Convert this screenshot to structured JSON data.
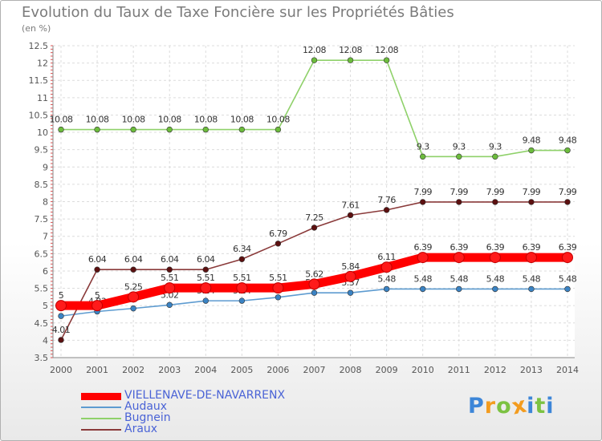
{
  "title": "Evolution du Taux de Taxe Foncière sur les Propriétés Bâties",
  "unit_label": "(en %)",
  "logo": {
    "text": "Proxiti",
    "letters": [
      "P",
      "r",
      "o",
      "x",
      "i",
      "t",
      "i"
    ],
    "colors": [
      "#3d86d8",
      "#f39c1f",
      "#7cc242",
      "#f39c1f",
      "#3d86d8",
      "#7cc242",
      "#3d86d8"
    ]
  },
  "chart_data": {
    "type": "line",
    "title": "Evolution du Taux de Taxe Foncière sur les Propriétés Bâties",
    "ylabel": "(en %)",
    "xlabel": "",
    "ylim": [
      3.5,
      12.5
    ],
    "grid": true,
    "y_ticks": [
      "3.5",
      "4",
      "4.5",
      "5",
      "5.5",
      "6",
      "6.5",
      "7",
      "7.5",
      "8",
      "8.5",
      "9",
      "9.5",
      "10",
      "10.5",
      "11",
      "11.5",
      "12",
      "12.5"
    ],
    "x": [
      "2000",
      "2001",
      "2002",
      "2003",
      "2004",
      "2005",
      "2006",
      "2007",
      "2008",
      "2009",
      "2010",
      "2011",
      "2012",
      "2013",
      "2014"
    ],
    "series": [
      {
        "name": "Audaux",
        "color": "#5d9bd0",
        "marker": "#3a83c4",
        "values": [
          4.7,
          4.83,
          4.92,
          5.02,
          5.14,
          5.14,
          5.24,
          5.37,
          5.37,
          5.48,
          5.48,
          5.48,
          5.48,
          5.48,
          5.48
        ],
        "labels": [
          "",
          "4.83",
          "",
          "5.02",
          "5.14",
          "5.14",
          "5.24",
          "5.37",
          "5.37",
          "5.48",
          "5.48",
          "5.48",
          "5.48",
          "5.48",
          "5.48"
        ]
      },
      {
        "name": "Bugnein",
        "color": "#8fd16a",
        "marker": "#6cbc3c",
        "values": [
          10.08,
          10.08,
          10.08,
          10.08,
          10.08,
          10.08,
          10.08,
          12.08,
          12.08,
          12.08,
          9.3,
          9.3,
          9.3,
          9.48,
          9.48
        ],
        "labels": [
          "10.08",
          "10.08",
          "10.08",
          "10.08",
          "10.08",
          "10.08",
          "10.08",
          "12.08",
          "12.08",
          "12.08",
          "9.3",
          "9.3",
          "9.3",
          "9.48",
          "9.48"
        ]
      },
      {
        "name": "Araux",
        "color": "#8a3a3a",
        "marker": "#5c1010",
        "values": [
          4.01,
          6.04,
          6.04,
          6.04,
          6.04,
          6.34,
          6.79,
          7.25,
          7.61,
          7.76,
          7.99,
          7.99,
          7.99,
          7.99,
          7.99
        ],
        "labels": [
          "4.01",
          "6.04",
          "6.04",
          "6.04",
          "6.04",
          "6.34",
          "6.79",
          "7.25",
          "7.61",
          "7.76",
          "7.99",
          "7.99",
          "7.99",
          "7.99",
          "7.99"
        ]
      },
      {
        "name": "VIELLENAVE-DE-NAVARRENX",
        "color": "#ff0000",
        "marker": "#ff1a1a",
        "highlight": true,
        "values": [
          5.0,
          5.0,
          5.25,
          5.51,
          5.51,
          5.51,
          5.51,
          5.62,
          5.84,
          6.11,
          6.39,
          6.39,
          6.39,
          6.39,
          6.39
        ],
        "labels": [
          "5",
          "5",
          "5.25",
          "5.51",
          "5.51",
          "5.51",
          "5.51",
          "5.62",
          "5.84",
          "6.11",
          "6.39",
          "6.39",
          "6.39",
          "6.39",
          "6.39"
        ]
      }
    ],
    "legend": [
      "VIELLENAVE-DE-NAVARRENX",
      "Audaux",
      "Bugnein",
      "Araux"
    ],
    "legend_position": "bottom-left"
  }
}
